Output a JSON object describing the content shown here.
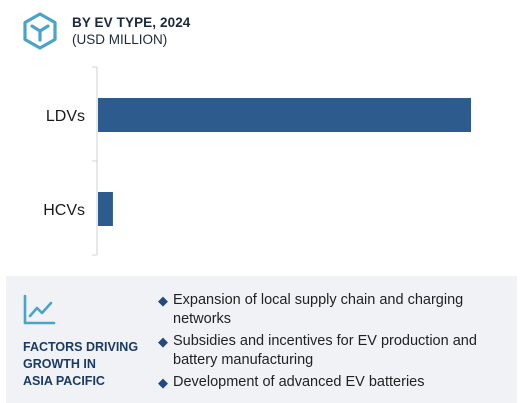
{
  "header": {
    "title": "BY EV TYPE, 2024",
    "subtitle": "(USD MILLION)"
  },
  "chart_data": {
    "type": "bar",
    "orientation": "horizontal",
    "categories": [
      "LDVs",
      "HCVs"
    ],
    "values": [
      100,
      4
    ],
    "color": "#2e5b8e",
    "grid": false,
    "legend": "none"
  },
  "factors": {
    "title_lines": [
      "FACTORS DRIVING",
      "GROWTH IN",
      "ASIA PACIFIC"
    ],
    "items": [
      "Expansion of local supply chain and charging networks",
      "Subsidies and incentives for EV production and battery manufacturing",
      "Development of advanced EV batteries"
    ],
    "bullet": "◆"
  },
  "colors": {
    "accent": "#2e5b8e",
    "icon": "#4aa3c8",
    "panel_bg": "#f1f2f6",
    "factors_title": "#1b3a63"
  }
}
